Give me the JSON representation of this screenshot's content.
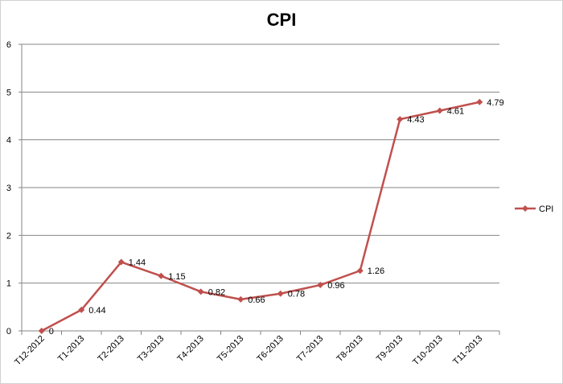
{
  "chart_data": {
    "type": "line",
    "title": "CPI",
    "categories": [
      "T12-2012",
      "T1-2013",
      "T2-2013",
      "T3-2013",
      "T4-2013",
      "T5-2013",
      "T6-2013",
      "T7-2013",
      "T8-2013",
      "T9-2013",
      "T10-2013",
      "T11-2013"
    ],
    "series": [
      {
        "name": "CPI",
        "values": [
          0,
          0.44,
          1.44,
          1.15,
          0.82,
          0.66,
          0.78,
          0.96,
          1.26,
          4.43,
          4.61,
          4.79
        ]
      }
    ],
    "data_labels": [
      "0",
      "0.44",
      "1.44",
      "1.15",
      "0.82",
      "0.66",
      "0.78",
      "0.96",
      "1.26",
      "4.43",
      "4.61",
      "4.79"
    ],
    "y_ticks": [
      "0",
      "1",
      "2",
      "3",
      "4",
      "5",
      "6"
    ],
    "ylim": [
      0,
      6
    ],
    "grid": true,
    "legend_position": "right",
    "colors": {
      "series": "#c0504d",
      "grid": "#868686",
      "axis": "#868686"
    }
  }
}
